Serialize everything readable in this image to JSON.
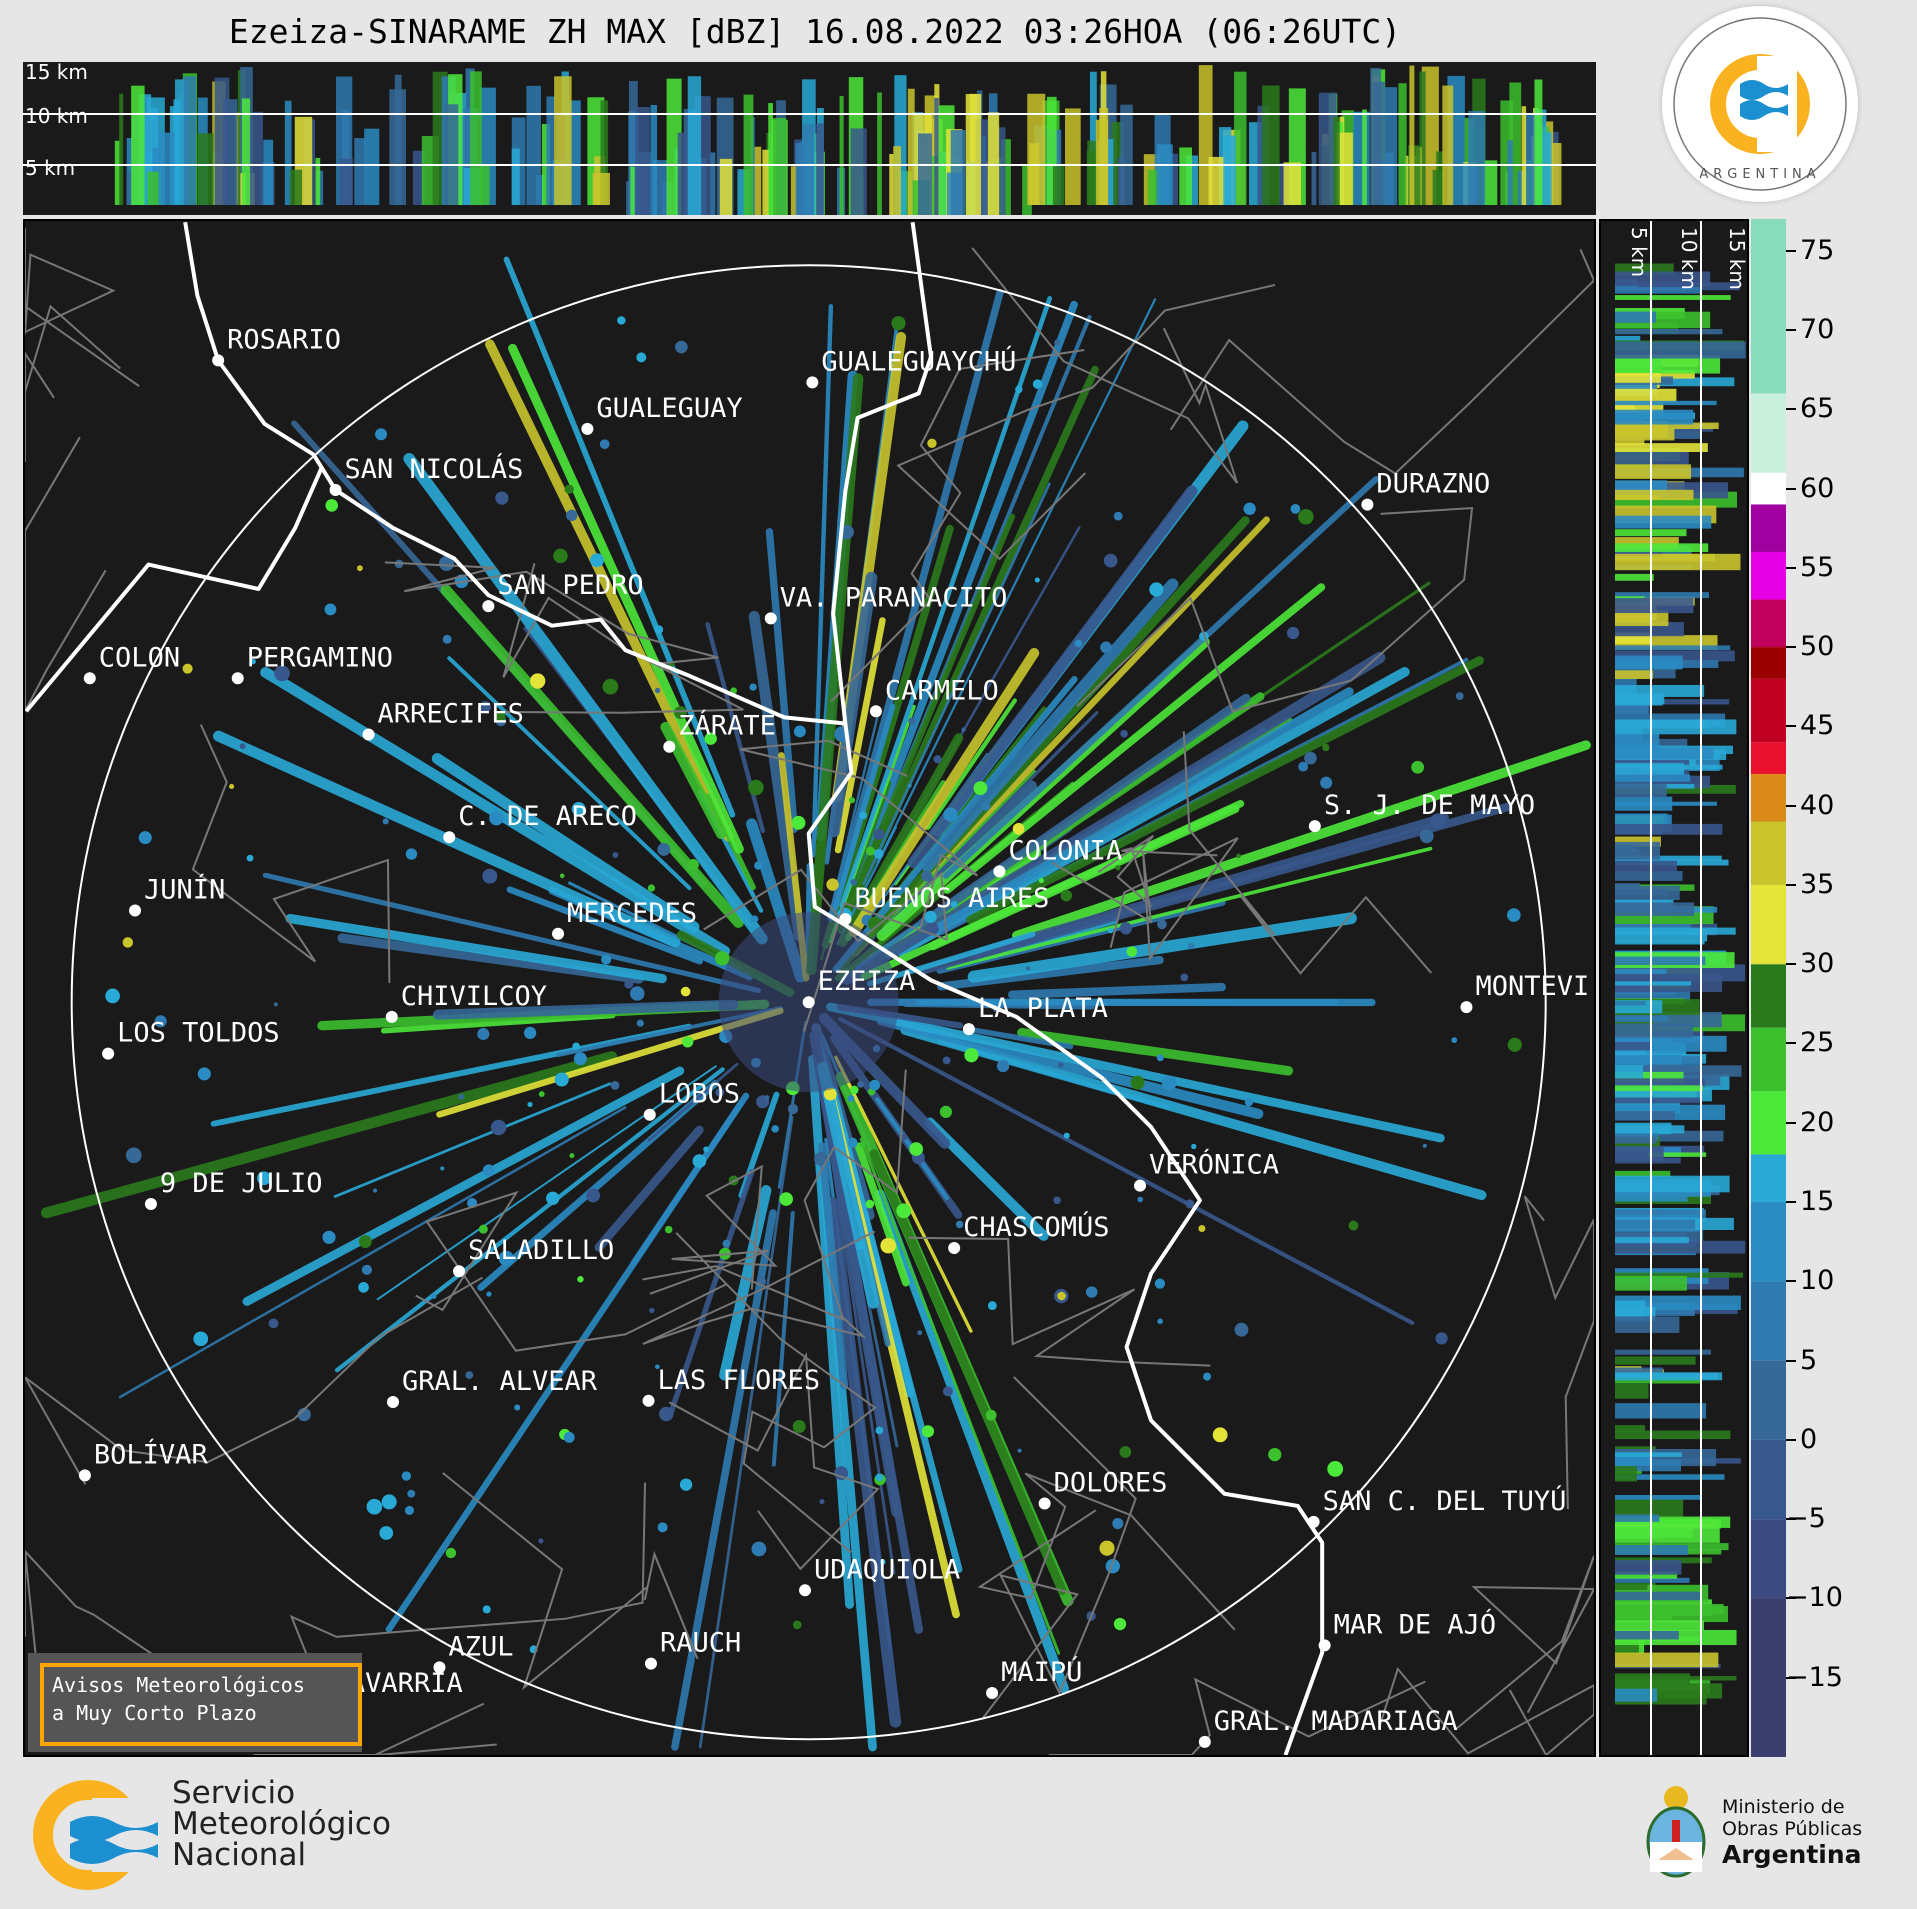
{
  "title": "Ezeiza-SINARAME ZH MAX [dBZ] 16.08.2022 03:26HOA (06:26UTC)",
  "top_xsection": {
    "height_labels": [
      "15 km",
      "10 km",
      "5 km"
    ]
  },
  "right_xsection": {
    "height_labels": [
      "5 km",
      "10 km",
      "15 km"
    ]
  },
  "colorbar": {
    "unit": "dBZ",
    "ticks": [
      "75",
      "70",
      "65",
      "60",
      "55",
      "50",
      "45",
      "40",
      "35",
      "30",
      "25",
      "20",
      "15",
      "10",
      "5",
      "0",
      "−5",
      "−10",
      "−15"
    ],
    "range": [
      -20,
      77
    ],
    "colors": [
      {
        "from": -20,
        "to": -10,
        "color": "#3c3f6e"
      },
      {
        "from": -10,
        "to": -5,
        "color": "#3b4a80"
      },
      {
        "from": -5,
        "to": 0,
        "color": "#38578c"
      },
      {
        "from": 0,
        "to": 5,
        "color": "#366898"
      },
      {
        "from": 5,
        "to": 10,
        "color": "#2f7ab0"
      },
      {
        "from": 10,
        "to": 15,
        "color": "#2a8bc2"
      },
      {
        "from": 15,
        "to": 18,
        "color": "#29a9d6"
      },
      {
        "from": 18,
        "to": 22,
        "color": "#4ce83a"
      },
      {
        "from": 22,
        "to": 26,
        "color": "#3cc02e"
      },
      {
        "from": 26,
        "to": 30,
        "color": "#2a7a1c"
      },
      {
        "from": 30,
        "to": 35,
        "color": "#e3e33a"
      },
      {
        "from": 35,
        "to": 39,
        "color": "#c9c42c"
      },
      {
        "from": 39,
        "to": 42,
        "color": "#d98a1a"
      },
      {
        "from": 42,
        "to": 44,
        "color": "#e8102e"
      },
      {
        "from": 44,
        "to": 48,
        "color": "#c00020"
      },
      {
        "from": 48,
        "to": 50,
        "color": "#9a0000"
      },
      {
        "from": 50,
        "to": 53,
        "color": "#c0005a"
      },
      {
        "from": 53,
        "to": 56,
        "color": "#e600e6"
      },
      {
        "from": 56,
        "to": 59,
        "color": "#a000a0"
      },
      {
        "from": 59,
        "to": 61,
        "color": "#ffffff"
      },
      {
        "from": 61,
        "to": 66,
        "color": "#c8f0dc"
      },
      {
        "from": 66,
        "to": 77,
        "color": "#88dcbc"
      }
    ]
  },
  "radar": {
    "name": "EZEIZA"
  },
  "cities": [
    "ROSARIO",
    "GUALEGUAYCHÚ",
    "GUALEGUAY",
    "SAN NICOLÁS",
    "DURAZNO",
    "SAN PEDRO",
    "VA. PARANACITO",
    "COLON",
    "PERGAMINO",
    "CARMELO",
    "ARRECIFES",
    "ZÁRATE",
    "S. J. DE MAYO",
    "C. DE ARECO",
    "COLONIA",
    "JUNÍN",
    "BUENOS AIRES",
    "MERCEDES",
    "EZEIZA",
    "MONTEVI",
    "CHIVILCOY",
    "LA PLATA",
    "LOS TOLDOS",
    "LOBOS",
    "VERÓNICA",
    "9 DE JULIO",
    "CHASCOMÚS",
    "SALADILLO",
    "GRAL. ALVEAR",
    "LAS FLORES",
    "BOLÍVAR",
    "DOLORES",
    "SAN C. DEL TUYÚ",
    "UDAQUIOLA",
    "MAR DE AJÓ",
    "AZUL",
    "RAUCH",
    "OLAVARRÍA",
    "MAIPÚ",
    "GRAL. MADARIAGA"
  ],
  "notice": {
    "line1": "Avisos Meteorológicos",
    "line2": "a Muy Corto Plazo"
  },
  "smn_logo": {
    "line1": "Servicio",
    "line2": "Meteorológico",
    "line3": "Nacional"
  },
  "sticker": {
    "top_text": "SERVICIO METEOROLÓGICO NACIONAL",
    "bottom_text": "ARGENTINA"
  },
  "ministry": {
    "line1": "Ministerio de",
    "line2": "Obras Públicas",
    "line3": "Argentina"
  }
}
